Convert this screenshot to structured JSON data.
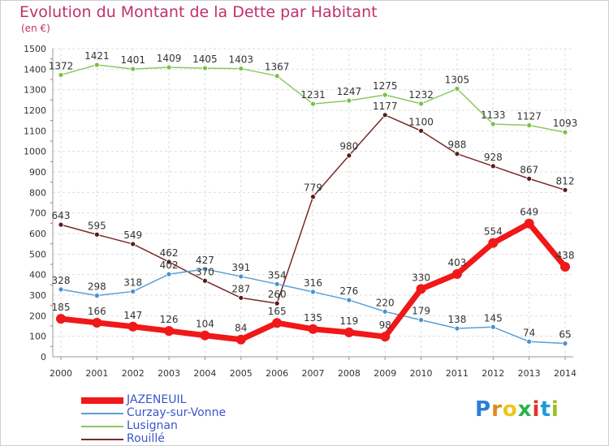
{
  "title": "Evolution du Montant de la Dette par Habitant",
  "unit": "(en €)",
  "logo": {
    "letters": [
      "P",
      "r",
      "o",
      "x",
      "i",
      "t",
      "i"
    ],
    "colors": [
      "#2a7fd4",
      "#e08a1e",
      "#f0c419",
      "#2ab24a",
      "#e0322b",
      "#1f9bd7",
      "#9ac21a"
    ]
  },
  "chart_data": {
    "type": "line",
    "categories": [
      "2000",
      "2001",
      "2002",
      "2003",
      "2004",
      "2005",
      "2006",
      "2007",
      "2008",
      "2009",
      "2010",
      "2011",
      "2012",
      "2013",
      "2014"
    ],
    "ylim": [
      0,
      1500
    ],
    "yticks": [
      0,
      100,
      200,
      300,
      400,
      500,
      600,
      700,
      800,
      900,
      1000,
      1100,
      1200,
      1300,
      1400,
      1500
    ],
    "grid": true,
    "legend": "bottom-left",
    "series": [
      {
        "name": "Lusignan",
        "color": "#8cc860",
        "marker": "#7ac142",
        "width": 1.5,
        "values": [
          1372,
          1421,
          1401,
          1409,
          1405,
          1403,
          1367,
          1231,
          1247,
          1275,
          1232,
          1305,
          1133,
          1127,
          1093
        ]
      },
      {
        "name": "Rouillé",
        "color": "#7a2a2a",
        "marker": "#5a1a1a",
        "width": 1.5,
        "values": [
          643,
          595,
          549,
          462,
          370,
          287,
          260,
          779,
          980,
          1177,
          1100,
          988,
          928,
          867,
          812
        ]
      },
      {
        "name": "Curzay-sur-Vonne",
        "color": "#5a9fd4",
        "marker": "#4a90d0",
        "width": 1.5,
        "values": [
          328,
          298,
          318,
          402,
          427,
          391,
          354,
          316,
          276,
          220,
          179,
          138,
          145,
          74,
          65
        ]
      },
      {
        "name": "JAZENEUIL",
        "color": "#f01818",
        "marker": "#f01818",
        "width": 7,
        "values": [
          185,
          166,
          147,
          126,
          104,
          84,
          165,
          135,
          119,
          98,
          330,
          403,
          554,
          649,
          438
        ]
      }
    ],
    "legend_order": [
      "JAZENEUIL",
      "Curzay-sur-Vonne",
      "Lusignan",
      "Rouillé"
    ]
  }
}
